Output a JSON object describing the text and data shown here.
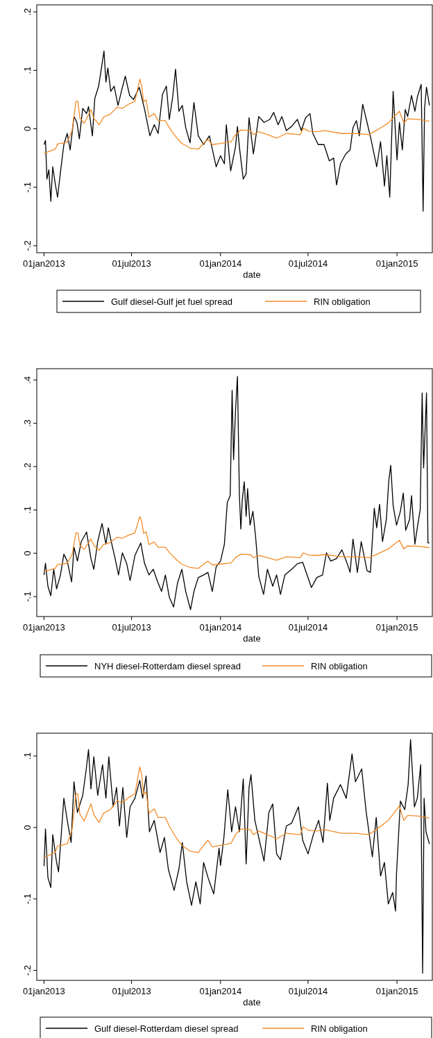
{
  "chart_data": [
    {
      "type": "line",
      "xlabel": "date",
      "legend": "bottom",
      "xlim": [
        "2012-12-17",
        "2015-03-15"
      ],
      "ylim": [
        -0.212,
        0.212
      ],
      "xticks": [
        {
          "value": "2013-01-01",
          "label": "01jan2013"
        },
        {
          "value": "2013-07-01",
          "label": "01jul2013"
        },
        {
          "value": "2014-01-01",
          "label": "01jan2014"
        },
        {
          "value": "2014-07-01",
          "label": "01jul2014"
        },
        {
          "value": "2015-01-01",
          "label": "01jan2015"
        }
      ],
      "yticks": [
        {
          "value": -0.2,
          "label": "-.2"
        },
        {
          "value": -0.1,
          "label": "-.1"
        },
        {
          "value": 0,
          "label": "0"
        },
        {
          "value": 0.1,
          "label": ".1"
        },
        {
          "value": 0.2,
          "label": ".2"
        }
      ],
      "series": [
        {
          "name": "Gulf diesel-Gulf jet fuel spread",
          "color": "#000000",
          "x": [
            "2013-01-01",
            "2013-01-04",
            "2013-01-07",
            "2013-01-11",
            "2013-01-15",
            "2013-01-19",
            "2013-01-24",
            "2013-01-29",
            "2013-02-04",
            "2013-02-11",
            "2013-02-18",
            "2013-02-24",
            "2013-03-04",
            "2013-03-10",
            "2013-03-15",
            "2013-03-22",
            "2013-03-30",
            "2013-04-03",
            "2013-04-11",
            "2013-04-16",
            "2013-04-24",
            "2013-05-01",
            "2013-05-05",
            "2013-05-09",
            "2013-05-13",
            "2013-05-19",
            "2013-05-26",
            "2013-06-03",
            "2013-06-10",
            "2013-06-18",
            "2013-06-27",
            "2013-07-05",
            "2013-07-17",
            "2013-07-28",
            "2013-08-08",
            "2013-08-17",
            "2013-08-25",
            "2013-09-03",
            "2013-09-11",
            "2013-09-17",
            "2013-09-24",
            "2013-09-30",
            "2013-10-07",
            "2013-10-14",
            "2013-10-21",
            "2013-10-30",
            "2013-11-07",
            "2013-11-16",
            "2013-11-27",
            "2013-12-09",
            "2013-12-23",
            "2014-01-01",
            "2014-01-09",
            "2014-01-13",
            "2014-01-22",
            "2014-02-01",
            "2014-02-05",
            "2014-02-09",
            "2014-02-17",
            "2014-02-23",
            "2014-03-01",
            "2014-03-10",
            "2014-03-21",
            "2014-04-01",
            "2014-04-13",
            "2014-04-21",
            "2014-04-30",
            "2014-05-08",
            "2014-05-17",
            "2014-05-28",
            "2014-06-09",
            "2014-06-17",
            "2014-06-26",
            "2014-07-05",
            "2014-07-11",
            "2014-07-22",
            "2014-08-03",
            "2014-08-14",
            "2014-08-23",
            "2014-08-29",
            "2014-09-06",
            "2014-09-17",
            "2014-09-26",
            "2014-10-02",
            "2014-10-09",
            "2014-10-15",
            "2014-10-22",
            "2014-10-31",
            "2014-11-08",
            "2014-11-20",
            "2014-11-28",
            "2014-12-06",
            "2014-12-11",
            "2014-12-17",
            "2014-12-24",
            "2015-01-01",
            "2015-01-06",
            "2015-01-12",
            "2015-01-18",
            "2015-01-23",
            "2015-01-31",
            "2015-02-07",
            "2015-02-12",
            "2015-02-20",
            "2015-02-24",
            "2015-02-27",
            "2015-03-03",
            "2015-03-09"
          ],
          "values": [
            -0.027,
            -0.02,
            -0.086,
            -0.07,
            -0.124,
            -0.065,
            -0.093,
            -0.117,
            -0.074,
            -0.027,
            -0.008,
            -0.036,
            0.021,
            0.011,
            -0.017,
            0.035,
            0.026,
            0.038,
            -0.012,
            0.052,
            0.073,
            0.111,
            0.133,
            0.08,
            0.104,
            0.064,
            0.073,
            0.04,
            0.064,
            0.09,
            0.057,
            0.05,
            0.071,
            0.033,
            -0.012,
            0.007,
            -0.008,
            0.059,
            0.073,
            0.016,
            0.054,
            0.102,
            0.03,
            0.04,
            0.002,
            -0.024,
            0.045,
            -0.012,
            -0.027,
            -0.012,
            -0.065,
            -0.046,
            -0.06,
            0.007,
            -0.072,
            -0.031,
            0.004,
            -0.031,
            -0.086,
            -0.077,
            0.019,
            -0.043,
            0.021,
            0.011,
            0.016,
            0.028,
            0.007,
            0.021,
            -0.003,
            0.004,
            0.016,
            -0.003,
            0.019,
            0.026,
            -0.008,
            -0.027,
            -0.027,
            -0.055,
            -0.05,
            -0.096,
            -0.06,
            -0.043,
            -0.036,
            0.002,
            0.014,
            -0.012,
            0.042,
            0.011,
            -0.017,
            -0.065,
            -0.022,
            -0.098,
            -0.046,
            -0.117,
            0.064,
            -0.053,
            0.011,
            -0.036,
            0.033,
            0.021,
            0.057,
            0.03,
            0.054,
            0.076,
            -0.141,
            0.035,
            0.071,
            0.04
          ]
        },
        {
          "name": "RIN obligation",
          "color": "#f28c28",
          "x": [
            "2013-01-01",
            "2013-01-24",
            "2013-01-29",
            "2013-02-18",
            "2013-02-28",
            "2013-03-08",
            "2013-03-12",
            "2013-03-16",
            "2013-03-25",
            "2013-04-08",
            "2013-04-14",
            "2013-04-25",
            "2013-05-04",
            "2013-05-18",
            "2013-06-01",
            "2013-06-12",
            "2013-06-27",
            "2013-07-08",
            "2013-07-18",
            "2013-07-22",
            "2013-07-26",
            "2013-07-31",
            "2013-08-06",
            "2013-08-17",
            "2013-08-25",
            "2013-09-09",
            "2013-09-17",
            "2013-10-02",
            "2013-10-13",
            "2013-10-30",
            "2013-11-16",
            "2013-11-27",
            "2013-12-06",
            "2013-12-15",
            "2014-01-01",
            "2014-01-23",
            "2014-02-01",
            "2014-02-12",
            "2014-03-04",
            "2014-03-10",
            "2014-03-21",
            "2014-04-08",
            "2014-04-27",
            "2014-05-17",
            "2014-06-15",
            "2014-06-21",
            "2014-07-02",
            "2014-07-19",
            "2014-08-05",
            "2014-09-08",
            "2014-10-07",
            "2014-11-04",
            "2014-11-21",
            "2014-12-14",
            "2014-12-31",
            "2015-01-06",
            "2015-01-15",
            "2015-01-23",
            "2015-02-15",
            "2015-03-09"
          ],
          "values": [
            -0.042,
            -0.035,
            -0.026,
            -0.023,
            -0.003,
            0.047,
            0.047,
            0.019,
            0.009,
            0.033,
            0.018,
            0.007,
            0.02,
            0.025,
            0.037,
            0.035,
            0.043,
            0.047,
            0.085,
            0.073,
            0.046,
            0.05,
            0.02,
            0.026,
            0.014,
            0.014,
            0.002,
            -0.015,
            -0.025,
            -0.033,
            -0.035,
            -0.025,
            -0.018,
            -0.027,
            -0.025,
            -0.022,
            -0.01,
            -0.002,
            -0.003,
            -0.01,
            -0.005,
            -0.01,
            -0.016,
            -0.008,
            -0.01,
            0.001,
            -0.004,
            -0.005,
            -0.003,
            -0.008,
            -0.008,
            -0.01,
            -0.002,
            0.01,
            0.025,
            0.03,
            0.01,
            0.017,
            0.016,
            0.013
          ]
        }
      ]
    },
    {
      "type": "line",
      "xlabel": "date",
      "legend": "bottom",
      "xlim": [
        "2012-12-17",
        "2015-03-15"
      ],
      "ylim": [
        -0.146,
        0.426
      ],
      "xticks": [
        {
          "value": "2013-01-01",
          "label": "01jan2013"
        },
        {
          "value": "2013-07-01",
          "label": "01jul2013"
        },
        {
          "value": "2014-01-01",
          "label": "01jan2014"
        },
        {
          "value": "2014-07-01",
          "label": "01jul2014"
        },
        {
          "value": "2015-01-01",
          "label": "01jan2015"
        }
      ],
      "yticks": [
        {
          "value": -0.1,
          "label": "-.1"
        },
        {
          "value": 0,
          "label": "0"
        },
        {
          "value": 0.1,
          "label": ".1"
        },
        {
          "value": 0.2,
          "label": ".2"
        },
        {
          "value": 0.3,
          "label": ".3"
        },
        {
          "value": 0.4,
          "label": ".4"
        }
      ],
      "series": [
        {
          "name": "NYH diesel-Rotterdam diesel spread",
          "color": "#000000",
          "x": [
            "2013-01-01",
            "2013-01-04",
            "2013-01-09",
            "2013-01-15",
            "2013-01-21",
            "2013-01-27",
            "2013-02-04",
            "2013-02-11",
            "2013-02-18",
            "2013-02-27",
            "2013-03-04",
            "2013-03-11",
            "2013-03-19",
            "2013-03-30",
            "2013-04-08",
            "2013-04-14",
            "2013-04-22",
            "2013-05-01",
            "2013-05-09",
            "2013-05-14",
            "2013-05-20",
            "2013-05-28",
            "2013-06-04",
            "2013-06-12",
            "2013-06-21",
            "2013-06-28",
            "2013-07-08",
            "2013-07-20",
            "2013-07-28",
            "2013-08-06",
            "2013-08-15",
            "2013-08-23",
            "2013-09-01",
            "2013-09-09",
            "2013-09-17",
            "2013-09-26",
            "2013-10-04",
            "2013-10-13",
            "2013-10-21",
            "2013-10-31",
            "2013-11-07",
            "2013-11-16",
            "2013-11-27",
            "2013-12-06",
            "2013-12-15",
            "2013-12-23",
            "2014-01-01",
            "2014-01-09",
            "2014-01-15",
            "2014-01-21",
            "2014-01-25",
            "2014-01-28",
            "2014-02-01",
            "2014-02-05",
            "2014-02-09",
            "2014-02-12",
            "2014-02-15",
            "2014-02-19",
            "2014-02-23",
            "2014-02-26",
            "2014-03-03",
            "2014-03-09",
            "2014-03-15",
            "2014-03-21",
            "2014-03-31",
            "2014-04-08",
            "2014-04-19",
            "2014-04-27",
            "2014-05-05",
            "2014-05-14",
            "2014-05-28",
            "2014-06-09",
            "2014-06-20",
            "2014-06-29",
            "2014-07-08",
            "2014-07-19",
            "2014-07-31",
            "2014-08-08",
            "2014-08-17",
            "2014-08-29",
            "2014-09-09",
            "2014-09-20",
            "2014-09-26",
            "2014-10-02",
            "2014-10-11",
            "2014-10-19",
            "2014-10-31",
            "2014-11-07",
            "2014-11-15",
            "2014-11-20",
            "2014-11-26",
            "2014-12-02",
            "2014-12-10",
            "2014-12-15",
            "2014-12-19",
            "2014-12-24",
            "2014-12-31",
            "2015-01-08",
            "2015-01-14",
            "2015-01-19",
            "2015-01-27",
            "2015-01-31",
            "2015-02-07",
            "2015-02-12",
            "2015-02-18",
            "2015-02-22",
            "2015-02-25",
            "2015-03-03",
            "2015-03-06",
            "2015-03-09"
          ],
          "values": [
            -0.05,
            -0.023,
            -0.076,
            -0.098,
            -0.037,
            -0.082,
            -0.05,
            -0.002,
            -0.018,
            -0.066,
            0.014,
            -0.018,
            0.027,
            0.049,
            -0.012,
            -0.037,
            0.027,
            0.069,
            0.021,
            0.059,
            0.027,
            -0.012,
            -0.05,
            0.001,
            -0.024,
            -0.063,
            -0.005,
            0.024,
            -0.024,
            -0.05,
            -0.037,
            -0.063,
            -0.088,
            -0.05,
            -0.101,
            -0.124,
            -0.069,
            -0.037,
            -0.088,
            -0.13,
            -0.088,
            -0.056,
            -0.05,
            -0.044,
            -0.088,
            -0.031,
            -0.018,
            0.021,
            0.117,
            0.133,
            0.376,
            0.216,
            0.328,
            0.408,
            0.136,
            0.056,
            0.123,
            0.165,
            0.085,
            0.149,
            0.065,
            0.097,
            0.033,
            -0.053,
            -0.095,
            -0.037,
            -0.076,
            -0.05,
            -0.095,
            -0.05,
            -0.037,
            -0.024,
            -0.021,
            -0.05,
            -0.079,
            -0.056,
            -0.05,
            0.001,
            -0.018,
            -0.012,
            0.008,
            -0.024,
            -0.044,
            0.033,
            -0.044,
            0.027,
            -0.04,
            -0.044,
            0.104,
            0.059,
            0.113,
            0.027,
            0.078,
            0.168,
            0.203,
            0.11,
            0.065,
            0.097,
            0.139,
            0.053,
            0.078,
            0.133,
            0.021,
            0.059,
            0.101,
            0.37,
            0.197,
            0.37,
            0.024,
            0.024
          ]
        },
        {
          "name": "RIN obligation",
          "color": "#f28c28",
          "x": [
            "2013-01-01",
            "2013-01-24",
            "2013-01-29",
            "2013-02-18",
            "2013-02-28",
            "2013-03-08",
            "2013-03-12",
            "2013-03-16",
            "2013-03-25",
            "2013-04-08",
            "2013-04-14",
            "2013-04-25",
            "2013-05-04",
            "2013-05-18",
            "2013-06-01",
            "2013-06-12",
            "2013-06-27",
            "2013-07-08",
            "2013-07-18",
            "2013-07-22",
            "2013-07-26",
            "2013-07-31",
            "2013-08-06",
            "2013-08-17",
            "2013-08-25",
            "2013-09-09",
            "2013-09-17",
            "2013-10-02",
            "2013-10-13",
            "2013-10-30",
            "2013-11-16",
            "2013-11-27",
            "2013-12-06",
            "2013-12-15",
            "2014-01-01",
            "2014-01-23",
            "2014-02-01",
            "2014-02-12",
            "2014-03-04",
            "2014-03-10",
            "2014-03-21",
            "2014-04-08",
            "2014-04-27",
            "2014-05-17",
            "2014-06-15",
            "2014-06-21",
            "2014-07-02",
            "2014-07-19",
            "2014-08-05",
            "2014-09-08",
            "2014-10-07",
            "2014-11-04",
            "2014-11-21",
            "2014-12-14",
            "2014-12-31",
            "2015-01-06",
            "2015-01-15",
            "2015-01-23",
            "2015-02-15",
            "2015-03-09"
          ],
          "values": [
            -0.042,
            -0.035,
            -0.026,
            -0.023,
            -0.003,
            0.047,
            0.047,
            0.019,
            0.009,
            0.033,
            0.018,
            0.007,
            0.02,
            0.025,
            0.037,
            0.035,
            0.043,
            0.047,
            0.085,
            0.073,
            0.046,
            0.05,
            0.02,
            0.026,
            0.014,
            0.014,
            0.002,
            -0.015,
            -0.025,
            -0.033,
            -0.035,
            -0.025,
            -0.018,
            -0.027,
            -0.025,
            -0.022,
            -0.01,
            -0.002,
            -0.003,
            -0.01,
            -0.005,
            -0.01,
            -0.016,
            -0.008,
            -0.01,
            0.001,
            -0.004,
            -0.005,
            -0.003,
            -0.008,
            -0.008,
            -0.01,
            -0.002,
            0.01,
            0.025,
            0.03,
            0.01,
            0.017,
            0.016,
            0.013
          ]
        }
      ]
    },
    {
      "type": "line",
      "xlabel": "date",
      "legend": "bottom",
      "xlim": [
        "2012-12-17",
        "2015-03-15"
      ],
      "ylim": [
        -0.214,
        0.132
      ],
      "xticks": [
        {
          "value": "2013-01-01",
          "label": "01jan2013"
        },
        {
          "value": "2013-07-01",
          "label": "01jul2013"
        },
        {
          "value": "2014-01-01",
          "label": "01jan2014"
        },
        {
          "value": "2014-07-01",
          "label": "01jul2014"
        },
        {
          "value": "2015-01-01",
          "label": "01jan2015"
        }
      ],
      "yticks": [
        {
          "value": -0.2,
          "label": "-.2"
        },
        {
          "value": -0.1,
          "label": "-.1"
        },
        {
          "value": 0,
          "label": "0"
        },
        {
          "value": 0.1,
          "label": ".1"
        }
      ],
      "series": [
        {
          "name": "Gulf diesel-Rotterdam diesel spread",
          "color": "#000000",
          "x": [
            "2013-01-01",
            "2013-01-04",
            "2013-01-09",
            "2013-01-15",
            "2013-01-19",
            "2013-01-27",
            "2013-01-31",
            "2013-02-04",
            "2013-02-11",
            "2013-02-18",
            "2013-02-26",
            "2013-03-04",
            "2013-03-11",
            "2013-03-22",
            "2013-03-29",
            "2013-04-03",
            "2013-04-08",
            "2013-04-14",
            "2013-04-22",
            "2013-05-02",
            "2013-05-09",
            "2013-05-15",
            "2013-05-24",
            "2013-05-31",
            "2013-06-06",
            "2013-06-13",
            "2013-06-21",
            "2013-06-28",
            "2013-07-08",
            "2013-07-18",
            "2013-07-24",
            "2013-07-31",
            "2013-08-07",
            "2013-08-17",
            "2013-08-29",
            "2013-09-07",
            "2013-09-15",
            "2013-09-27",
            "2013-10-07",
            "2013-10-14",
            "2013-10-23",
            "2013-11-02",
            "2013-11-11",
            "2013-11-20",
            "2013-11-27",
            "2013-12-07",
            "2013-12-18",
            "2013-12-29",
            "2014-01-01",
            "2014-01-08",
            "2014-01-16",
            "2014-01-24",
            "2014-02-01",
            "2014-02-09",
            "2014-02-17",
            "2014-02-23",
            "2014-03-01",
            "2014-03-05",
            "2014-03-13",
            "2014-03-21",
            "2014-04-01",
            "2014-04-11",
            "2014-04-19",
            "2014-04-27",
            "2014-05-05",
            "2014-05-17",
            "2014-05-28",
            "2014-06-11",
            "2014-06-20",
            "2014-07-01",
            "2014-07-12",
            "2014-07-23",
            "2014-08-01",
            "2014-08-10",
            "2014-08-15",
            "2014-08-23",
            "2014-09-06",
            "2014-09-18",
            "2014-09-30",
            "2014-10-07",
            "2014-10-20",
            "2014-10-29",
            "2014-11-11",
            "2014-11-19",
            "2014-11-28",
            "2014-12-06",
            "2014-12-14",
            "2014-12-23",
            "2014-12-29",
            "2014-12-31",
            "2015-01-08",
            "2015-01-17",
            "2015-01-24",
            "2015-01-29",
            "2015-02-06",
            "2015-02-12",
            "2015-02-19",
            "2015-02-23",
            "2015-02-26",
            "2015-03-02",
            "2015-03-09"
          ],
          "values": [
            -0.054,
            -0.002,
            -0.07,
            -0.084,
            -0.01,
            -0.049,
            -0.062,
            -0.025,
            0.041,
            0.01,
            -0.021,
            0.064,
            0.021,
            0.045,
            0.08,
            0.109,
            0.054,
            0.099,
            0.045,
            0.088,
            0.041,
            0.099,
            0.029,
            0.056,
            0.002,
            0.056,
            -0.014,
            0.029,
            0.041,
            0.066,
            0.041,
            0.072,
            -0.006,
            0.01,
            -0.035,
            -0.014,
            -0.058,
            -0.088,
            -0.058,
            -0.021,
            -0.076,
            -0.109,
            -0.076,
            -0.107,
            -0.049,
            -0.072,
            -0.093,
            -0.029,
            -0.053,
            -0.014,
            0.053,
            -0.006,
            0.029,
            -0.006,
            0.068,
            -0.051,
            0.056,
            0.074,
            0.01,
            -0.014,
            -0.047,
            0.021,
            0.033,
            -0.037,
            -0.045,
            0.002,
            0.006,
            0.029,
            -0.018,
            -0.037,
            -0.01,
            0.01,
            -0.021,
            0.062,
            0.01,
            0.041,
            0.06,
            0.041,
            0.103,
            0.064,
            0.082,
            0.023,
            -0.041,
            0.014,
            -0.068,
            -0.049,
            -0.107,
            -0.091,
            -0.117,
            -0.064,
            0.037,
            0.025,
            0.06,
            0.123,
            0.029,
            0.041,
            0.088,
            -0.204,
            0.041,
            -0.006,
            -0.023
          ]
        },
        {
          "name": "RIN obligation",
          "color": "#f28c28",
          "x": [
            "2013-01-01",
            "2013-01-24",
            "2013-01-29",
            "2013-02-18",
            "2013-02-28",
            "2013-03-08",
            "2013-03-12",
            "2013-03-16",
            "2013-03-25",
            "2013-04-08",
            "2013-04-14",
            "2013-04-25",
            "2013-05-04",
            "2013-05-18",
            "2013-06-01",
            "2013-06-12",
            "2013-06-27",
            "2013-07-08",
            "2013-07-18",
            "2013-07-22",
            "2013-07-26",
            "2013-07-31",
            "2013-08-06",
            "2013-08-17",
            "2013-08-25",
            "2013-09-09",
            "2013-09-17",
            "2013-10-02",
            "2013-10-13",
            "2013-10-30",
            "2013-11-16",
            "2013-11-27",
            "2013-12-06",
            "2013-12-15",
            "2014-01-01",
            "2014-01-23",
            "2014-02-01",
            "2014-02-12",
            "2014-03-04",
            "2014-03-10",
            "2014-03-21",
            "2014-04-08",
            "2014-04-27",
            "2014-05-17",
            "2014-06-15",
            "2014-06-21",
            "2014-07-02",
            "2014-07-19",
            "2014-08-05",
            "2014-09-08",
            "2014-10-07",
            "2014-11-04",
            "2014-11-21",
            "2014-12-14",
            "2014-12-31",
            "2015-01-06",
            "2015-01-15",
            "2015-01-23",
            "2015-02-15",
            "2015-03-09"
          ],
          "values": [
            -0.042,
            -0.035,
            -0.026,
            -0.023,
            -0.003,
            0.047,
            0.047,
            0.019,
            0.009,
            0.033,
            0.018,
            0.007,
            0.02,
            0.025,
            0.037,
            0.035,
            0.043,
            0.047,
            0.085,
            0.073,
            0.046,
            0.05,
            0.02,
            0.026,
            0.014,
            0.014,
            0.002,
            -0.015,
            -0.025,
            -0.033,
            -0.035,
            -0.025,
            -0.018,
            -0.027,
            -0.025,
            -0.022,
            -0.01,
            -0.002,
            -0.003,
            -0.01,
            -0.005,
            -0.01,
            -0.016,
            -0.008,
            -0.01,
            0.001,
            -0.004,
            -0.005,
            -0.003,
            -0.008,
            -0.008,
            -0.01,
            -0.002,
            0.01,
            0.025,
            0.03,
            0.01,
            0.017,
            0.016,
            0.013
          ]
        }
      ]
    }
  ]
}
